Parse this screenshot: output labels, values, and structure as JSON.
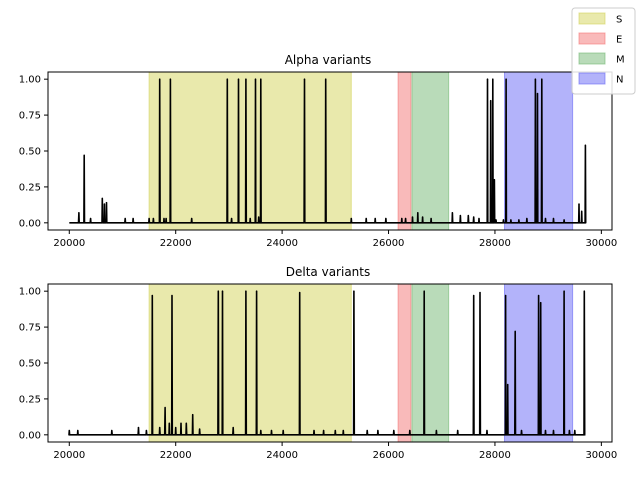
{
  "legend": {
    "placement": "top-right",
    "entries": [
      {
        "label": "S",
        "color": "#d4d45a"
      },
      {
        "label": "E",
        "color": "#f47676"
      },
      {
        "label": "M",
        "color": "#73b873"
      },
      {
        "label": "N",
        "color": "#6767f5"
      }
    ]
  },
  "chart_data": [
    {
      "type": "line",
      "title": "Alpha variants",
      "xlabel": "",
      "ylabel": "",
      "xlim": [
        19600,
        30200
      ],
      "ylim": [
        -0.05,
        1.05
      ],
      "x_ticks": [
        20000,
        22000,
        24000,
        26000,
        28000,
        30000
      ],
      "x_tick_labels": [
        "20000",
        "22000",
        "24000",
        "26000",
        "28000",
        "30000"
      ],
      "y_ticks": [
        0,
        0.25,
        0.5,
        0.75,
        1.0
      ],
      "y_tick_labels": [
        "0.00",
        "0.25",
        "0.50",
        "0.75",
        "1.00"
      ],
      "grid": false,
      "regions": [
        {
          "name": "S",
          "start": 21500,
          "end": 25300,
          "color": "#d4d45a"
        },
        {
          "name": "E",
          "start": 26180,
          "end": 26420,
          "color": "#f47676"
        },
        {
          "name": "M",
          "start": 26440,
          "end": 27130,
          "color": "#73b873"
        },
        {
          "name": "N",
          "start": 28180,
          "end": 29460,
          "color": "#6767f5"
        }
      ],
      "series": [
        {
          "color": "#000000",
          "x_range": [
            20000,
            29700
          ],
          "baseline": 0.0,
          "peaks": [
            [
              20180,
              0.07
            ],
            [
              20280,
              0.47
            ],
            [
              20400,
              0.03
            ],
            [
              20620,
              0.17
            ],
            [
              20660,
              0.13
            ],
            [
              20700,
              0.14
            ],
            [
              21050,
              0.03
            ],
            [
              21200,
              0.03
            ],
            [
              21500,
              0.03
            ],
            [
              21580,
              0.03
            ],
            [
              21700,
              1.0
            ],
            [
              21780,
              0.03
            ],
            [
              21820,
              0.03
            ],
            [
              21900,
              1.0
            ],
            [
              22300,
              0.03
            ],
            [
              22970,
              1.0
            ],
            [
              23050,
              0.03
            ],
            [
              23180,
              1.0
            ],
            [
              23320,
              1.0
            ],
            [
              23400,
              0.03
            ],
            [
              23500,
              1.0
            ],
            [
              23560,
              0.04
            ],
            [
              23600,
              1.0
            ],
            [
              24420,
              1.0
            ],
            [
              24820,
              1.0
            ],
            [
              25300,
              0.03
            ],
            [
              25580,
              0.03
            ],
            [
              25750,
              0.03
            ],
            [
              25950,
              0.03
            ],
            [
              26250,
              0.03
            ],
            [
              26320,
              0.03
            ],
            [
              26450,
              0.04
            ],
            [
              26550,
              0.07
            ],
            [
              26640,
              0.04
            ],
            [
              26800,
              0.03
            ],
            [
              27200,
              0.07
            ],
            [
              27350,
              0.05
            ],
            [
              27500,
              0.05
            ],
            [
              27600,
              0.04
            ],
            [
              27700,
              0.03
            ],
            [
              27860,
              1.0
            ],
            [
              27920,
              0.85
            ],
            [
              27960,
              1.0
            ],
            [
              27990,
              0.3
            ],
            [
              28020,
              0.02
            ],
            [
              28160,
              0.02
            ],
            [
              28210,
              1.0
            ],
            [
              28300,
              0.02
            ],
            [
              28450,
              0.02
            ],
            [
              28600,
              0.03
            ],
            [
              28760,
              1.0
            ],
            [
              28800,
              0.9
            ],
            [
              28880,
              1.0
            ],
            [
              28950,
              0.03
            ],
            [
              29100,
              0.03
            ],
            [
              29300,
              0.02
            ],
            [
              29580,
              0.13
            ],
            [
              29630,
              0.08
            ],
            [
              29700,
              0.54
            ]
          ]
        }
      ]
    },
    {
      "type": "line",
      "title": "Delta variants",
      "xlabel": "",
      "ylabel": "",
      "xlim": [
        19600,
        30200
      ],
      "ylim": [
        -0.05,
        1.05
      ],
      "x_ticks": [
        20000,
        22000,
        24000,
        26000,
        28000,
        30000
      ],
      "x_tick_labels": [
        "20000",
        "22000",
        "24000",
        "26000",
        "28000",
        "30000"
      ],
      "y_ticks": [
        0,
        0.25,
        0.5,
        0.75,
        1.0
      ],
      "y_tick_labels": [
        "0.00",
        "0.25",
        "0.50",
        "0.75",
        "1.00"
      ],
      "grid": false,
      "regions": [
        {
          "name": "S",
          "start": 21500,
          "end": 25300,
          "color": "#d4d45a"
        },
        {
          "name": "E",
          "start": 26180,
          "end": 26420,
          "color": "#f47676"
        },
        {
          "name": "M",
          "start": 26440,
          "end": 27130,
          "color": "#73b873"
        },
        {
          "name": "N",
          "start": 28180,
          "end": 29460,
          "color": "#6767f5"
        }
      ],
      "series": [
        {
          "color": "#000000",
          "x_range": [
            20000,
            29700
          ],
          "baseline": 0.0,
          "peaks": [
            [
              20000,
              0.03
            ],
            [
              20160,
              0.03
            ],
            [
              20800,
              0.03
            ],
            [
              21300,
              0.05
            ],
            [
              21450,
              0.03
            ],
            [
              21560,
              0.97
            ],
            [
              21700,
              0.05
            ],
            [
              21800,
              0.19
            ],
            [
              21880,
              0.08
            ],
            [
              21930,
              0.97
            ],
            [
              22000,
              0.05
            ],
            [
              22100,
              0.08
            ],
            [
              22200,
              0.08
            ],
            [
              22320,
              0.14
            ],
            [
              22450,
              0.04
            ],
            [
              22800,
              1.0
            ],
            [
              22880,
              1.0
            ],
            [
              23080,
              0.05
            ],
            [
              23320,
              1.0
            ],
            [
              23520,
              1.0
            ],
            [
              23600,
              0.03
            ],
            [
              23800,
              0.03
            ],
            [
              24020,
              0.03
            ],
            [
              24330,
              0.99
            ],
            [
              24600,
              0.03
            ],
            [
              24780,
              0.03
            ],
            [
              25000,
              0.03
            ],
            [
              25150,
              0.03
            ],
            [
              25350,
              1.0
            ],
            [
              25600,
              0.03
            ],
            [
              25800,
              0.03
            ],
            [
              26100,
              0.03
            ],
            [
              26400,
              0.03
            ],
            [
              26670,
              1.0
            ],
            [
              26900,
              0.03
            ],
            [
              27300,
              0.03
            ],
            [
              27600,
              0.97
            ],
            [
              27720,
              0.99
            ],
            [
              27850,
              0.03
            ],
            [
              28200,
              0.97
            ],
            [
              28240,
              0.35
            ],
            [
              28380,
              0.72
            ],
            [
              28500,
              0.03
            ],
            [
              28820,
              0.97
            ],
            [
              28860,
              0.92
            ],
            [
              28950,
              0.03
            ],
            [
              29100,
              0.03
            ],
            [
              29300,
              1.0
            ],
            [
              29400,
              0.03
            ],
            [
              29500,
              0.03
            ],
            [
              29680,
              1.0
            ]
          ]
        }
      ]
    }
  ]
}
